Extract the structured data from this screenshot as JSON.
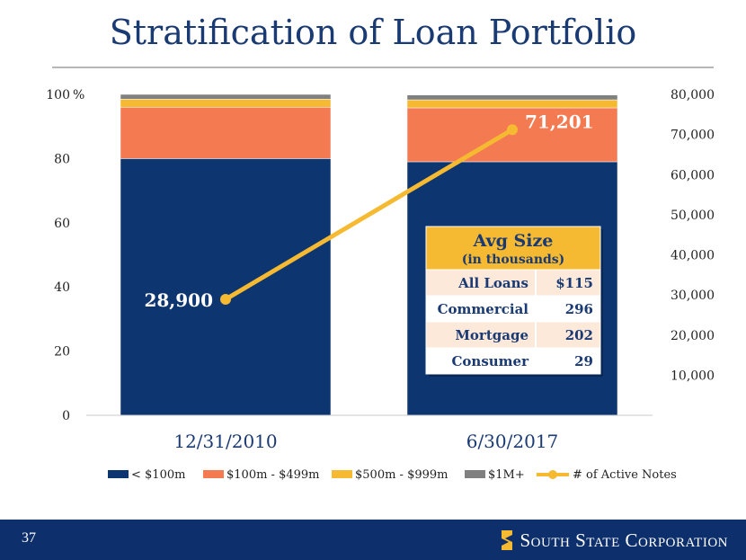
{
  "slide": {
    "title": "Stratification of Loan Portfolio",
    "page_number": "37",
    "company": "South State Corporation"
  },
  "colors": {
    "title": "#1a3a73",
    "navy": "#0d3570",
    "salmon": "#f47a52",
    "gold": "#f5b932",
    "gray": "#808080",
    "footer": "#0d2f6b",
    "table_header": "#f5b932",
    "table_row_even": "#fde9d9",
    "table_row_odd": "#ffffff"
  },
  "icons": {
    "logo": "s-shield-icon"
  },
  "chart_data": {
    "type": "bar",
    "stacked": true,
    "categories": [
      "12/31/2010",
      "6/30/2017"
    ],
    "series": [
      {
        "name": "< $100m",
        "color": "#0d3570",
        "values": [
          80.0,
          79.0
        ]
      },
      {
        "name": "$100m - $499m",
        "color": "#f47a52",
        "values": [
          16.0,
          16.8
        ]
      },
      {
        "name": "$500m - $999m",
        "color": "#f5b932",
        "values": [
          2.5,
          2.5
        ]
      },
      {
        "name": "$1M+",
        "color": "#808080",
        "values": [
          1.5,
          1.5
        ]
      }
    ],
    "line_series": {
      "name": "# of Active Notes",
      "color": "#f5b932",
      "values": [
        28900,
        71201
      ],
      "labels": [
        "28,900",
        "71,201"
      ]
    },
    "ylim": [
      0,
      100
    ],
    "yticks": [
      0,
      20,
      40,
      60,
      80,
      100
    ],
    "ytick_labels": [
      "0",
      "20",
      "40",
      "60",
      "80",
      "100"
    ],
    "y_unit": "%",
    "y2lim": [
      0,
      80000
    ],
    "y2ticks": [
      10000,
      20000,
      30000,
      40000,
      50000,
      60000,
      70000,
      80000
    ],
    "y2tick_labels": [
      "10,000",
      "20,000",
      "30,000",
      "40,000",
      "50,000",
      "60,000",
      "70,000",
      "80,000"
    ],
    "legend_position": "bottom",
    "grid": false,
    "table": {
      "title": "Avg Size",
      "subtitle": "(in thousands)",
      "rows": [
        {
          "label": "All Loans",
          "value": "$115"
        },
        {
          "label": "Commercial",
          "value": "296"
        },
        {
          "label": "Mortgage",
          "value": "202"
        },
        {
          "label": "Consumer",
          "value": "29"
        }
      ]
    }
  }
}
